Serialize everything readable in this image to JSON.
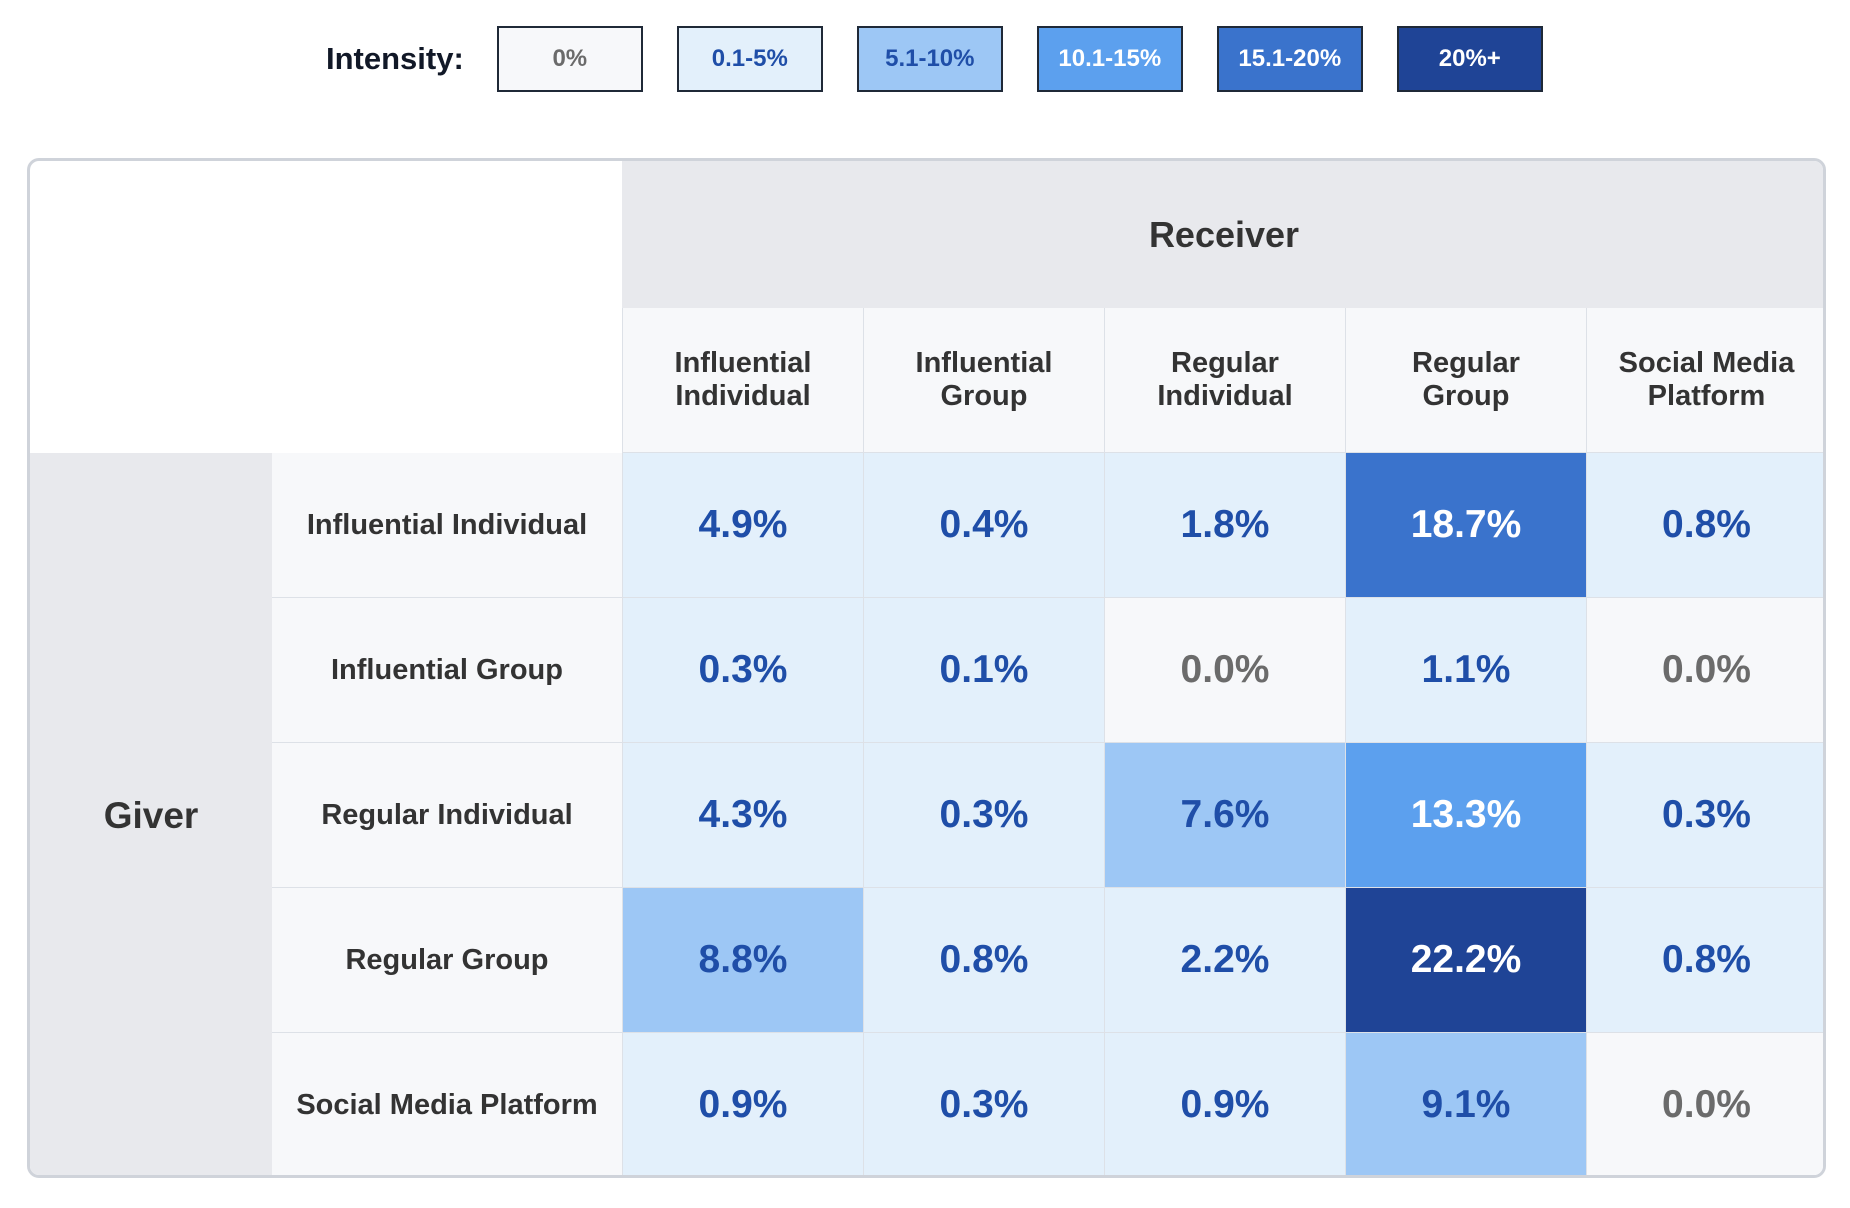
{
  "legend": {
    "title": "Intensity:",
    "items": [
      {
        "label": "0%",
        "bg": "#f7f8fa",
        "fg": "#6b6b6b"
      },
      {
        "label": "0.1-5%",
        "bg": "#e3f0fb",
        "fg": "#1f4ea8"
      },
      {
        "label": "5.1-10%",
        "bg": "#9dc7f5",
        "fg": "#1f4ea8"
      },
      {
        "label": "10.1-15%",
        "bg": "#5ca0ee",
        "fg": "#ffffff"
      },
      {
        "label": "15.1-20%",
        "bg": "#3a73cc",
        "fg": "#ffffff"
      },
      {
        "label": "20%+",
        "bg": "#1f4496",
        "fg": "#ffffff"
      }
    ]
  },
  "chart_data": {
    "type": "heatmap",
    "title": "",
    "column_axis_label": "Receiver",
    "row_axis_label": "Giver",
    "columns": [
      "Influential\nIndividual",
      "Influential\nGroup",
      "Regular\nIndividual",
      "Regular\nGroup",
      "Social Media\nPlatform"
    ],
    "rows": [
      "Influential Individual",
      "Influential Group",
      "Regular Individual",
      "Regular Group",
      "Social Media Platform"
    ],
    "values": [
      [
        4.9,
        0.4,
        1.8,
        18.7,
        0.8
      ],
      [
        0.3,
        0.1,
        0.0,
        1.1,
        0.0
      ],
      [
        4.3,
        0.3,
        7.6,
        13.3,
        0.3
      ],
      [
        8.8,
        0.8,
        2.2,
        22.2,
        0.8
      ],
      [
        0.9,
        0.3,
        0.9,
        9.1,
        0.0
      ]
    ],
    "labels": [
      [
        "4.9%",
        "0.4%",
        "1.8%",
        "18.7%",
        "0.8%"
      ],
      [
        "0.3%",
        "0.1%",
        "0.0%",
        "1.1%",
        "0.0%"
      ],
      [
        "4.3%",
        "0.3%",
        "7.6%",
        "13.3%",
        "0.3%"
      ],
      [
        "8.8%",
        "0.8%",
        "2.2%",
        "22.2%",
        "0.8%"
      ],
      [
        "0.9%",
        "0.3%",
        "0.9%",
        "9.1%",
        "0.0%"
      ]
    ],
    "unit": "%"
  }
}
